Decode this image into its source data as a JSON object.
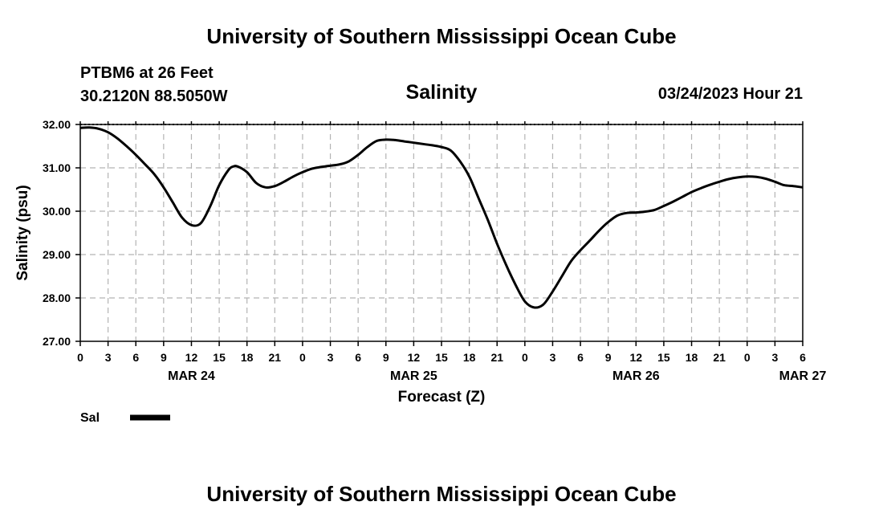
{
  "header": {
    "org_title": "University of Southern Mississippi Ocean Cube",
    "station_line": "PTBM6 at 26 Feet",
    "coords_line": "30.2120N  88.5050W",
    "run_time": "03/24/2023 Hour 21"
  },
  "footer": {
    "org_title": "University of Southern Mississippi Ocean Cube"
  },
  "colors": {
    "line": "#000000",
    "grid": "#b4b4b4",
    "background": "#ffffff"
  },
  "chart_data": {
    "type": "line",
    "title": "Salinity",
    "xlabel": "Forecast (Z)",
    "ylabel": "Salinity (psu)",
    "ylim": [
      27,
      32
    ],
    "xlim": [
      0,
      78
    ],
    "yticks": [
      "27.00",
      "28.00",
      "29.00",
      "30.00",
      "31.00",
      "32.00"
    ],
    "xtick_labels": [
      "0",
      "3",
      "6",
      "9",
      "12",
      "15",
      "18",
      "21",
      "0",
      "3",
      "6",
      "9",
      "12",
      "15",
      "18",
      "21",
      "0",
      "3",
      "6",
      "9",
      "12",
      "15",
      "18",
      "21",
      "0",
      "3",
      "6"
    ],
    "date_labels": [
      {
        "label": "MAR 24",
        "hour": 12
      },
      {
        "label": "MAR 25",
        "hour": 36
      },
      {
        "label": "MAR 26",
        "hour": 60
      },
      {
        "label": "MAR 27",
        "hour": 78
      }
    ],
    "grid": true,
    "legend": "bottom-left",
    "series": [
      {
        "name": "Sal",
        "x": [
          0,
          1,
          2,
          3,
          4,
          5,
          6,
          7,
          8,
          9,
          10,
          11,
          12,
          13,
          14,
          15,
          16,
          16.5,
          17,
          18,
          19,
          20,
          21,
          22,
          23,
          24,
          25,
          26,
          27,
          28,
          29,
          30,
          31,
          32,
          33,
          34,
          35,
          36,
          37,
          38,
          39,
          40,
          41,
          42,
          43,
          44,
          45,
          46,
          47,
          48,
          49,
          50,
          51,
          52,
          53,
          54,
          55,
          56,
          57,
          58,
          59,
          60,
          61,
          62,
          63,
          64,
          65,
          66,
          67,
          68,
          69,
          70,
          71,
          72,
          73,
          74,
          75,
          76,
          77,
          78
        ],
        "values": [
          31.92,
          31.93,
          31.9,
          31.82,
          31.68,
          31.5,
          31.3,
          31.08,
          30.85,
          30.55,
          30.2,
          29.85,
          29.68,
          29.72,
          30.1,
          30.6,
          30.95,
          31.03,
          31.03,
          30.9,
          30.65,
          30.55,
          30.58,
          30.68,
          30.8,
          30.9,
          30.98,
          31.02,
          31.05,
          31.08,
          31.15,
          31.3,
          31.48,
          31.62,
          31.65,
          31.64,
          31.61,
          31.58,
          31.55,
          31.52,
          31.48,
          31.4,
          31.15,
          30.8,
          30.3,
          29.8,
          29.25,
          28.75,
          28.3,
          27.92,
          27.78,
          27.85,
          28.15,
          28.5,
          28.85,
          29.1,
          29.32,
          29.55,
          29.75,
          29.9,
          29.96,
          29.97,
          29.99,
          30.03,
          30.12,
          30.22,
          30.33,
          30.44,
          30.53,
          30.61,
          30.68,
          30.74,
          30.78,
          30.8,
          30.79,
          30.75,
          30.68,
          30.6,
          30.58,
          30.55
        ]
      }
    ]
  }
}
